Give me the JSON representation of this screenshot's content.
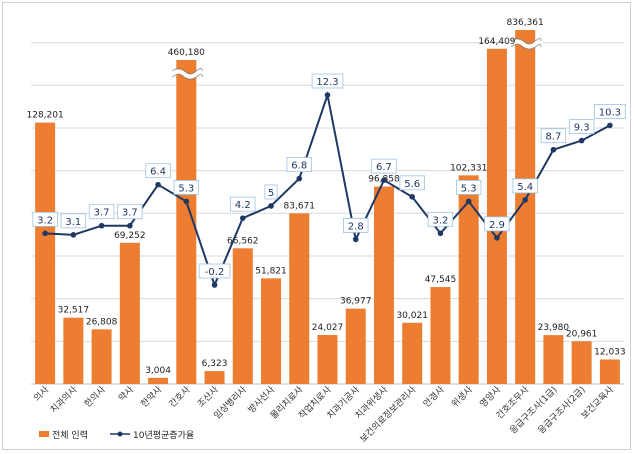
{
  "chart_data": {
    "type": "bar",
    "categories": [
      "의사",
      "치과의사",
      "한의사",
      "약사",
      "한약사",
      "간호사",
      "조산사",
      "임상병리사",
      "방사선사",
      "물리치료사",
      "작업치료사",
      "치과기공사",
      "치과위생사",
      "보건의료정보관리사",
      "안경사",
      "위생사",
      "영양사",
      "간호조무사",
      "응급구조사(1급)",
      "응급구조사(2급)",
      "보건교육사"
    ],
    "series": [
      {
        "name": "전체 인력",
        "type": "bar",
        "color": "#ed7d31",
        "values": [
          128201,
          32517,
          26808,
          69252,
          3004,
          460180,
          6323,
          66562,
          51821,
          83671,
          24027,
          36977,
          96858,
          30021,
          47545,
          102331,
          164409,
          836361,
          23980,
          20961,
          12033
        ],
        "labels": [
          "128,201",
          "32,517",
          "26,808",
          "69,252",
          "3,004",
          "460,180",
          "6,323",
          "66,562",
          "51,821",
          "83,671",
          "24,027",
          "36,977",
          "96,858",
          "30,021",
          "47,545",
          "102,331",
          "164,409",
          "836,361",
          "23,980",
          "20,961",
          "12,033"
        ],
        "broken": [
          false,
          false,
          false,
          false,
          false,
          true,
          false,
          false,
          false,
          false,
          false,
          false,
          false,
          false,
          false,
          false,
          false,
          true,
          false,
          false,
          false
        ]
      },
      {
        "name": "10년평균증가율",
        "type": "line",
        "color": "#1f3864",
        "values": [
          3.2,
          3.1,
          3.7,
          3.7,
          6.4,
          5.3,
          -0.2,
          4.2,
          5,
          6.8,
          12.3,
          2.8,
          6.7,
          5.6,
          3.2,
          5.3,
          2.9,
          5.4,
          8.7,
          9.3,
          10.3
        ],
        "labels": [
          "3.2",
          "3.1",
          "3.7",
          "3.7",
          "6.4",
          "5.3",
          "-0.2",
          "4.2",
          "5",
          "6.8",
          "12.3",
          "2.8",
          "6.7",
          "5.6",
          "3.2",
          "5.3",
          "2.9",
          "5.4",
          "8.7",
          "9.3",
          "10.3"
        ]
      }
    ],
    "bar_axis_max": 180000,
    "line_axis_range": [
      -0.2,
      12.3
    ],
    "grid": true,
    "legend_position": "bottom-left"
  },
  "legend": {
    "bar_label": "전체 인력",
    "line_label": "10년평균증가율"
  }
}
